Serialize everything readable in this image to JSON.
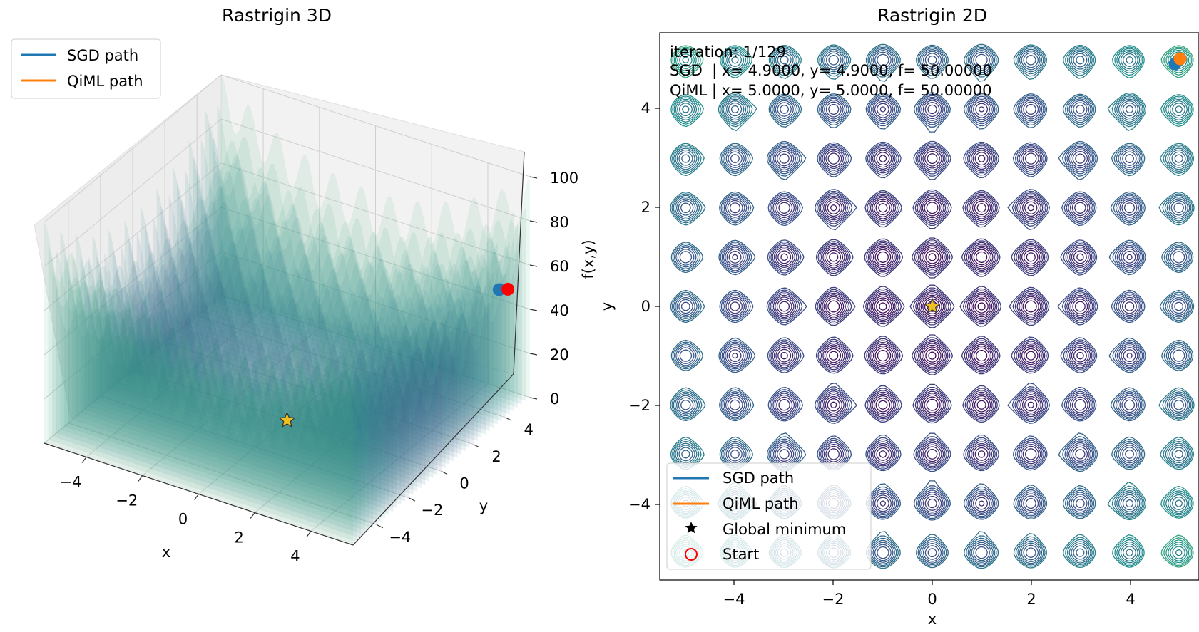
{
  "chart_data": [
    {
      "type": "surface",
      "title": "Rastrigin 3D",
      "xlabel": "x",
      "ylabel": "y",
      "zlabel": "f(x,y)",
      "xlim": [
        -5.5,
        5.5
      ],
      "ylim": [
        -5.5,
        5.5
      ],
      "zlim": [
        0,
        100
      ],
      "x_ticks": [
        "−4",
        "−2",
        "0",
        "2",
        "4"
      ],
      "y_ticks": [
        "−4",
        "−2",
        "0",
        "2",
        "4"
      ],
      "z_ticks": [
        "0",
        "20",
        "40",
        "60",
        "80",
        "100"
      ],
      "grid": true,
      "legend_position": "top-left",
      "legend": [
        {
          "label": "SGD path",
          "color": "#1f77b4"
        },
        {
          "label": "QiML path",
          "color": "#ff7f0e"
        }
      ],
      "points": [
        {
          "name": "SGD",
          "x": 4.9,
          "y": 4.9,
          "z": 50.0,
          "color": "#1f77b4"
        },
        {
          "name": "QiML",
          "x": 5.0,
          "y": 5.0,
          "z": 50.0,
          "color": "#ff0000"
        },
        {
          "name": "Global minimum",
          "x": 0,
          "y": 0,
          "z": 0,
          "color": "#f0c020"
        }
      ]
    },
    {
      "type": "contour",
      "title": "Rastrigin 2D",
      "xlabel": "x",
      "ylabel": "y",
      "xlim": [
        -5.5,
        5.5
      ],
      "ylim": [
        -5.5,
        5.5
      ],
      "x_ticks": [
        "−4",
        "−2",
        "0",
        "2",
        "4"
      ],
      "y_ticks": [
        "−4",
        "−2",
        "0",
        "2",
        "4"
      ],
      "info_lines": [
        "iteration: 1/129",
        "SGD  | x= 4.9000, y= 4.9000, f= 50.00000",
        "QiML | x= 5.0000, y= 5.0000, f= 50.00000"
      ],
      "legend_position": "lower-left",
      "legend": [
        {
          "label": "SGD path",
          "color": "#1f77b4",
          "marker": "line"
        },
        {
          "label": "QiML path",
          "color": "#ff7f0e",
          "marker": "line"
        },
        {
          "label": "Global minimum",
          "color": "#000000",
          "marker": "star"
        },
        {
          "label": "Start",
          "color": "#ff0000",
          "marker": "circle"
        }
      ],
      "points": [
        {
          "name": "SGD",
          "x": 4.9,
          "y": 4.9,
          "color": "#1f77b4"
        },
        {
          "name": "QiML",
          "x": 5.0,
          "y": 5.0,
          "color": "#ff7f0e"
        },
        {
          "name": "Global minimum",
          "x": 0,
          "y": 0,
          "color": "#f0c020"
        }
      ]
    }
  ]
}
